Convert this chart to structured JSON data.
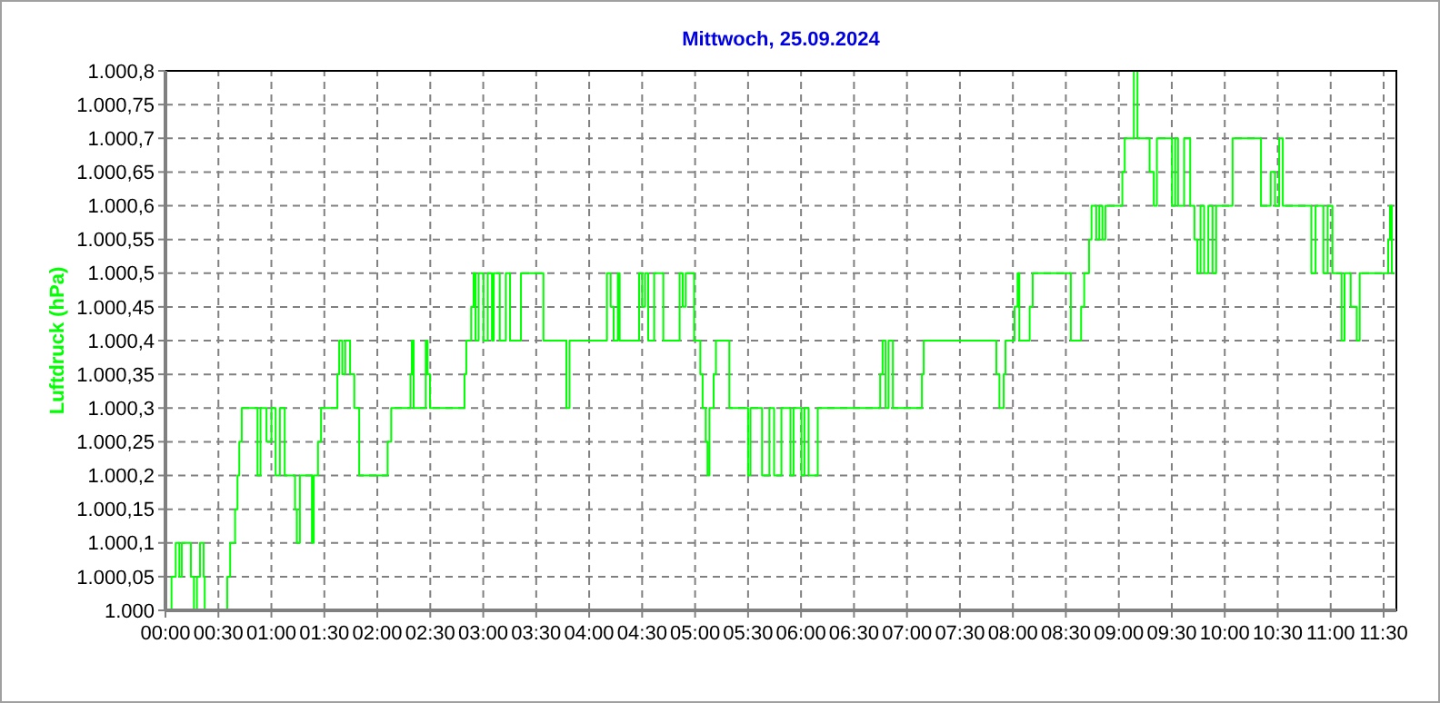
{
  "chart_data": {
    "type": "step",
    "title": "Mittwoch, 25.09.2024",
    "ylabel": "Luftdruck (hPa)",
    "grid": true,
    "xlim": [
      0,
      11.62
    ],
    "ylim": [
      1000,
      1000.8
    ],
    "xticks": [
      {
        "value": 0,
        "label": "00:00"
      },
      {
        "value": 0.5,
        "label": "00:30"
      },
      {
        "value": 1,
        "label": "01:00"
      },
      {
        "value": 1.5,
        "label": "01:30"
      },
      {
        "value": 2,
        "label": "02:00"
      },
      {
        "value": 2.5,
        "label": "02:30"
      },
      {
        "value": 3,
        "label": "03:00"
      },
      {
        "value": 3.5,
        "label": "03:30"
      },
      {
        "value": 4,
        "label": "04:00"
      },
      {
        "value": 4.5,
        "label": "04:30"
      },
      {
        "value": 5,
        "label": "05:00"
      },
      {
        "value": 5.5,
        "label": "05:30"
      },
      {
        "value": 6,
        "label": "06:00"
      },
      {
        "value": 6.5,
        "label": "06:30"
      },
      {
        "value": 7,
        "label": "07:00"
      },
      {
        "value": 7.5,
        "label": "07:30"
      },
      {
        "value": 8,
        "label": "08:00"
      },
      {
        "value": 8.5,
        "label": "08:30"
      },
      {
        "value": 9,
        "label": "09:00"
      },
      {
        "value": 9.5,
        "label": "09:30"
      },
      {
        "value": 10,
        "label": "10:00"
      },
      {
        "value": 10.5,
        "label": "10:30"
      },
      {
        "value": 11,
        "label": "11:00"
      },
      {
        "value": 11.5,
        "label": "11:30"
      }
    ],
    "yticks": [
      {
        "value": 1000,
        "label": "1.000"
      },
      {
        "value": 1000.05,
        "label": "1.000,05"
      },
      {
        "value": 1000.1,
        "label": "1.000,1"
      },
      {
        "value": 1000.15,
        "label": "1.000,15"
      },
      {
        "value": 1000.2,
        "label": "1.000,2"
      },
      {
        "value": 1000.25,
        "label": "1.000,25"
      },
      {
        "value": 1000.3,
        "label": "1.000,3"
      },
      {
        "value": 1000.35,
        "label": "1.000,35"
      },
      {
        "value": 1000.4,
        "label": "1.000,4"
      },
      {
        "value": 1000.45,
        "label": "1.000,45"
      },
      {
        "value": 1000.5,
        "label": "1.000,5"
      },
      {
        "value": 1000.55,
        "label": "1.000,55"
      },
      {
        "value": 1000.6,
        "label": "1.000,6"
      },
      {
        "value": 1000.65,
        "label": "1.000,65"
      },
      {
        "value": 1000.7,
        "label": "1.000,7"
      },
      {
        "value": 1000.75,
        "label": "1.000,75"
      },
      {
        "value": 1000.8,
        "label": "1.000,8"
      }
    ],
    "series": [
      {
        "color": "#00ff00",
        "x": [
          0,
          0.057,
          0.097,
          0.131,
          0.154,
          0.24,
          0.269,
          0.297,
          0.326,
          0.36,
          0.371,
          0.583,
          0.611,
          0.657,
          0.68,
          0.697,
          0.72,
          0.869,
          0.897,
          0.954,
          1.0,
          1.04,
          1.08,
          1.126,
          1.223,
          1.24,
          1.269,
          1.383,
          1.4,
          1.44,
          1.469,
          1.623,
          1.64,
          1.669,
          1.697,
          1.743,
          1.783,
          1.829,
          2.097,
          2.131,
          2.314,
          2.326,
          2.343,
          2.457,
          2.474,
          2.497,
          2.823,
          2.84,
          2.886,
          2.909,
          2.927,
          2.956,
          3.002,
          3.042,
          3.082,
          3.099,
          3.156,
          3.213,
          3.253,
          3.356,
          3.568,
          3.785,
          3.814,
          4.168,
          4.203,
          4.231,
          4.271,
          4.288,
          4.471,
          4.5,
          4.528,
          4.557,
          4.614,
          4.7,
          4.854,
          4.883,
          4.911,
          4.991,
          5.049,
          5.071,
          5.1,
          5.117,
          5.135,
          5.175,
          5.197,
          5.323,
          5.5,
          5.523,
          5.632,
          5.701,
          5.746,
          5.815,
          5.901,
          5.929,
          6.004,
          6.032,
          6.072,
          6.158,
          6.747,
          6.77,
          6.798,
          6.827,
          6.867,
          7.141,
          7.158,
          7.844,
          7.873,
          7.913,
          7.93,
          8.016,
          8.044,
          8.061,
          8.158,
          8.187,
          8.547,
          8.644,
          8.673,
          8.719,
          8.742,
          8.787,
          8.816,
          8.845,
          8.873,
          9.033,
          9.056,
          9.142,
          9.176,
          9.29,
          9.33,
          9.359,
          9.502,
          9.531,
          9.559,
          9.616,
          9.674,
          9.714,
          9.742,
          9.771,
          9.805,
          9.845,
          9.885,
          9.919,
          10.074,
          10.342,
          10.434,
          10.474,
          10.514,
          10.548,
          10.817,
          10.857,
          10.931,
          10.971,
          11.017,
          11.103,
          11.131,
          11.189,
          11.246,
          11.274,
          11.543,
          11.56,
          11.577,
          11.6
        ],
        "values": [
          1000,
          1000.05,
          1000.1,
          1000.05,
          1000.1,
          1000.05,
          1000,
          1000.05,
          1000.1,
          1000.05,
          1000,
          1000.05,
          1000.1,
          1000.15,
          1000.2,
          1000.25,
          1000.3,
          1000.2,
          1000.3,
          1000.25,
          1000.3,
          1000.2,
          1000.3,
          1000.2,
          1000.15,
          1000.1,
          1000.2,
          1000.1,
          1000.2,
          1000.25,
          1000.3,
          1000.35,
          1000.4,
          1000.35,
          1000.4,
          1000.35,
          1000.3,
          1000.2,
          1000.25,
          1000.3,
          1000.35,
          1000.4,
          1000.3,
          1000.4,
          1000.35,
          1000.3,
          1000.35,
          1000.4,
          1000.45,
          1000.5,
          1000.4,
          1000.5,
          1000.4,
          1000.5,
          1000.4,
          1000.5,
          1000.4,
          1000.5,
          1000.4,
          1000.5,
          1000.4,
          1000.3,
          1000.4,
          1000.5,
          1000.45,
          1000.4,
          1000.5,
          1000.4,
          1000.5,
          1000.45,
          1000.5,
          1000.4,
          1000.5,
          1000.4,
          1000.5,
          1000.45,
          1000.5,
          1000.4,
          1000.35,
          1000.3,
          1000.25,
          1000.2,
          1000.3,
          1000.35,
          1000.4,
          1000.3,
          1000.2,
          1000.3,
          1000.2,
          1000.3,
          1000.2,
          1000.3,
          1000.2,
          1000.3,
          1000.2,
          1000.3,
          1000.2,
          1000.3,
          1000.35,
          1000.4,
          1000.3,
          1000.4,
          1000.3,
          1000.35,
          1000.4,
          1000.35,
          1000.3,
          1000.35,
          1000.4,
          1000.45,
          1000.5,
          1000.4,
          1000.45,
          1000.5,
          1000.4,
          1000.45,
          1000.5,
          1000.55,
          1000.6,
          1000.55,
          1000.6,
          1000.55,
          1000.6,
          1000.65,
          1000.7,
          1000.8,
          1000.7,
          1000.65,
          1000.6,
          1000.7,
          1000.6,
          1000.7,
          1000.6,
          1000.7,
          1000.6,
          1000.55,
          1000.5,
          1000.6,
          1000.5,
          1000.6,
          1000.5,
          1000.6,
          1000.7,
          1000.6,
          1000.65,
          1000.6,
          1000.7,
          1000.6,
          1000.5,
          1000.6,
          1000.5,
          1000.6,
          1000.5,
          1000.4,
          1000.5,
          1000.45,
          1000.4,
          1000.5,
          1000.55,
          1000.6,
          1000.5,
          1000.5
        ]
      }
    ]
  }
}
